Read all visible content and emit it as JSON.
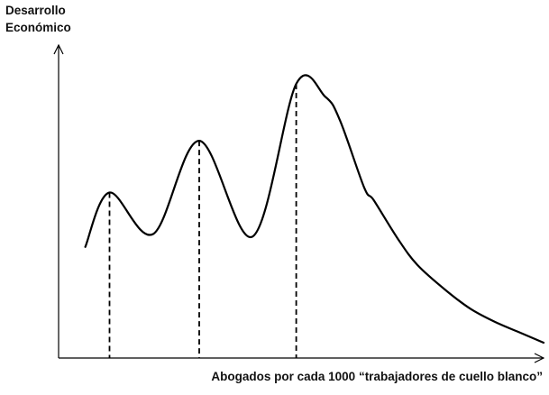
{
  "chart_data": {
    "type": "line",
    "title": "",
    "ylabel_lines": [
      "Desarrollo",
      "Económico"
    ],
    "xlabel": "Abogados por cada 1000 “trabajadores de cuello blanco”",
    "grid": false,
    "legend": "none",
    "xlim": [
      0,
      100
    ],
    "ylim": [
      0,
      100
    ],
    "series": [
      {
        "color": "#000000",
        "x": [
          5.5,
          10.5,
          19.5,
          29,
          40,
          49,
          55,
          58,
          63,
          65,
          70,
          74,
          80,
          85,
          90,
          95,
          100
        ],
        "y": [
          37,
          58,
          42,
          78,
          41,
          100,
          95,
          86,
          60,
          55,
          40,
          30,
          20,
          13,
          8,
          4,
          0
        ]
      }
    ],
    "peaks": [
      {
        "x": 10.5,
        "y": 58
      },
      {
        "x": 29,
        "y": 78
      },
      {
        "x": 49,
        "y": 100
      }
    ]
  }
}
